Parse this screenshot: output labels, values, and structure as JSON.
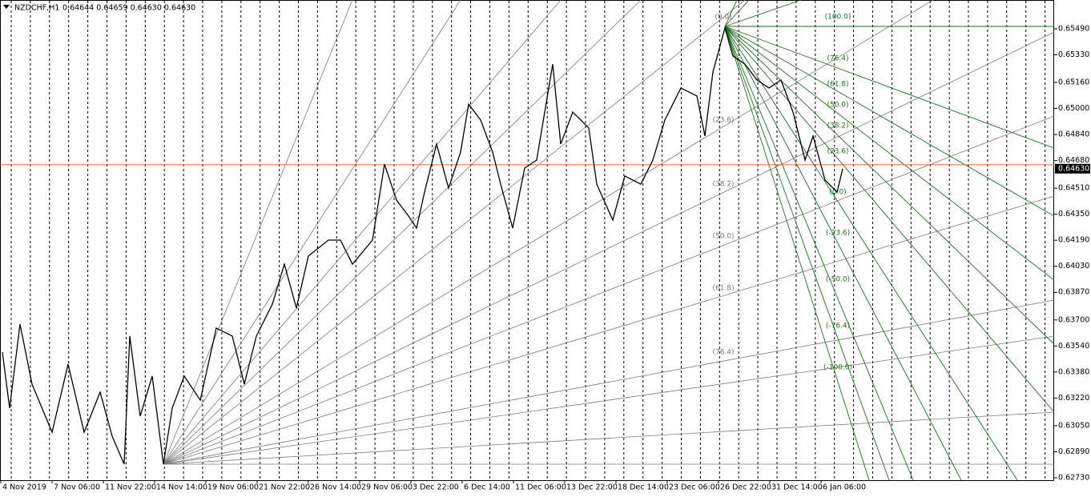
{
  "chart_data": {
    "type": "line",
    "title": "NZDCHF,H1",
    "quote": "0.64644 0.64659 0.64630 0.64630",
    "color": "#000000",
    "x": [
      3,
      12,
      25,
      40,
      65,
      85,
      105,
      125,
      140,
      155,
      162,
      175,
      190,
      204,
      215,
      230,
      250,
      270,
      290,
      305,
      320,
      340,
      355,
      370,
      385,
      410,
      425,
      440,
      465,
      480,
      495,
      510,
      520,
      530,
      545,
      560,
      575,
      585,
      600,
      615,
      625,
      640,
      655,
      670,
      690,
      700,
      715,
      735,
      745,
      765,
      780,
      800,
      815,
      830,
      850,
      870,
      880,
      890,
      905,
      915,
      930,
      945,
      960,
      975,
      990,
      1005,
      1015,
      1030,
      1045,
      1052
    ],
    "values": [
      0.63502,
      0.63158,
      0.63674,
      0.63305,
      0.6301,
      0.63428,
      0.6301,
      0.63256,
      0.62986,
      0.62813,
      0.63601,
      0.63109,
      0.63355,
      0.62813,
      0.63158,
      0.63355,
      0.63207,
      0.6365,
      0.63601,
      0.63305,
      0.63601,
      0.63797,
      0.64043,
      0.63773,
      0.64093,
      0.64191,
      0.64191,
      0.64043,
      0.64191,
      0.64658,
      0.64437,
      0.64339,
      0.64265,
      0.64486,
      0.64781,
      0.64511,
      0.64732,
      0.65027,
      0.64929,
      0.64732,
      0.64535,
      0.64265,
      0.64634,
      0.64683,
      0.65273,
      0.64781,
      0.64978,
      0.6488,
      0.64535,
      0.64314,
      0.64585,
      0.64535,
      0.64683,
      0.64929,
      0.65126,
      0.65077,
      0.64831,
      0.65224,
      0.65495,
      0.65323,
      0.65273,
      0.65175,
      0.65126,
      0.65175,
      0.64978,
      0.64683,
      0.64831,
      0.6456,
      0.64486,
      0.6463
    ],
    "current_price": {
      "value": 0.6463,
      "label": "0.64630"
    },
    "level_line": {
      "value": 0.64654,
      "color": "#ff6a2a"
    },
    "xlim": [
      0,
      1316
    ],
    "xticks": [
      {
        "value": 0,
        "label": "4 Nov 2019"
      },
      {
        "value": 64,
        "label": "7 Nov 06:00"
      },
      {
        "value": 128,
        "label": "11 Nov 22:00"
      },
      {
        "value": 192,
        "label": "14 Nov 14:00"
      },
      {
        "value": 256,
        "label": "19 Nov 06:00"
      },
      {
        "value": 320,
        "label": "21 Nov 22:00"
      },
      {
        "value": 384,
        "label": "26 Nov 14:00"
      },
      {
        "value": 448,
        "label": "29 Nov 06:00"
      },
      {
        "value": 512,
        "label": "3 Dec 22:00"
      },
      {
        "value": 576,
        "label": "6 Dec 14:00"
      },
      {
        "value": 640,
        "label": "11 Dec 06:00"
      },
      {
        "value": 704,
        "label": "13 Dec 22:00"
      },
      {
        "value": 768,
        "label": "18 Dec 14:00"
      },
      {
        "value": 832,
        "label": "23 Dec 06:00"
      },
      {
        "value": 896,
        "label": "26 Dec 22:00"
      },
      {
        "value": 960,
        "label": "31 Dec 14:00"
      },
      {
        "value": 1024,
        "label": "6 Jan 06:00"
      }
    ],
    "ylim": [
      0.62715,
      0.65667
    ],
    "yticks": [
      {
        "value": 0.6549,
        "label": "0.65490"
      },
      {
        "value": 0.6533,
        "label": "0.65330"
      },
      {
        "value": 0.6516,
        "label": "0.65160"
      },
      {
        "value": 0.65,
        "label": "0.65000"
      },
      {
        "value": 0.6484,
        "label": "0.64840"
      },
      {
        "value": 0.6468,
        "label": "0.64680"
      },
      {
        "value": 0.6451,
        "label": "0.64510"
      },
      {
        "value": 0.6435,
        "label": "0.64350"
      },
      {
        "value": 0.6419,
        "label": "0.64190"
      },
      {
        "value": 0.6403,
        "label": "0.64030"
      },
      {
        "value": 0.6387,
        "label": "0.63870"
      },
      {
        "value": 0.637,
        "label": "0.63700"
      },
      {
        "value": 0.6354,
        "label": "0.63540"
      },
      {
        "value": 0.6338,
        "label": "0.63380"
      },
      {
        "value": 0.6322,
        "label": "0.63220"
      },
      {
        "value": 0.6305,
        "label": "0.63050"
      },
      {
        "value": 0.6289,
        "label": "0.62890"
      },
      {
        "value": 0.6273,
        "label": "0.62730"
      }
    ],
    "gray_fan_labels": [
      "(0.0)",
      "(23.6)",
      "(38.2)",
      "(50.0)",
      "(61.8)",
      "(76.4)"
    ],
    "green_fan_labels": [
      "(100.0)",
      "(76.4)",
      "(61.8)",
      "(50.0)",
      "(38.2)",
      "(23.6)",
      "(0.0)",
      "(-23.6)",
      "(-50.0)",
      "(-76.4)",
      "(-100.0)"
    ]
  }
}
